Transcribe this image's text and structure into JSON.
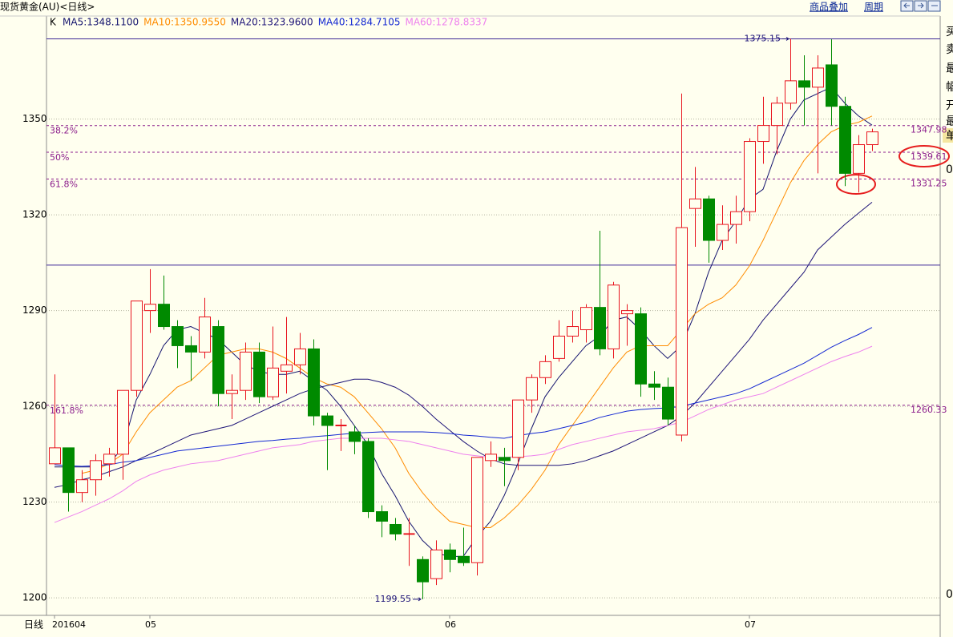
{
  "chart_data": {
    "type": "candlestick",
    "title": "现货黄金(AU)<日线>",
    "toolbar": {
      "overlay": "商品叠加",
      "period": "周期"
    },
    "indicator": "K",
    "x_axis_label": "日线",
    "right_panel": [
      "买",
      "卖",
      "最",
      "幅",
      "开",
      "最",
      "单",
      "0",
      "0"
    ],
    "categories": [
      "201604",
      null,
      null,
      null,
      null,
      null,
      null,
      "05",
      null,
      null,
      null,
      null,
      null,
      null,
      null,
      null,
      null,
      null,
      null,
      null,
      null,
      null,
      null,
      null,
      null,
      null,
      null,
      null,
      null,
      "06",
      null,
      null,
      null,
      null,
      null,
      null,
      null,
      null,
      null,
      null,
      null,
      null,
      null,
      null,
      null,
      null,
      null,
      null,
      null,
      null,
      null,
      "07",
      null,
      null,
      null,
      null,
      null,
      null,
      null,
      null,
      null
    ],
    "open": [
      1242,
      1247,
      1233,
      1237,
      1242,
      1245,
      1265,
      1290,
      1292,
      1285,
      1279,
      1277,
      1285,
      1264,
      1265,
      1277,
      1263,
      1271,
      1273,
      1278,
      1257,
      1254,
      1252,
      1249,
      1227,
      1223,
      1220,
      1212,
      1206,
      1215,
      1213,
      1211,
      1243,
      1244,
      1244,
      1262,
      1269,
      1275,
      1282,
      1284,
      1291,
      1278,
      1289,
      1289,
      1267,
      1266,
      1251,
      1322,
      1325,
      1312,
      1317,
      1321,
      1343,
      1348,
      1355,
      1362,
      1360,
      1367,
      1354,
      1333,
      1342
    ],
    "high": [
      1270,
      1247,
      1240,
      1245,
      1247,
      1265,
      1293,
      1303,
      1301,
      1287,
      1282,
      1294,
      1287,
      1270,
      1280,
      1280,
      1285,
      1288,
      1283,
      1281,
      1258,
      1256,
      1254,
      1250,
      1229,
      1225,
      1225,
      1213,
      1218,
      1217,
      1222,
      1244,
      1249,
      1247,
      1262,
      1270,
      1276,
      1287,
      1290,
      1292,
      1315,
      1299,
      1292,
      1291,
      1271,
      1269,
      1358,
      1335,
      1326,
      1323,
      1326,
      1344,
      1357,
      1357,
      1375.15,
      1370,
      1370,
      1375,
      1357,
      1345,
      1347
    ],
    "low": [
      1242,
      1227,
      1230,
      1232,
      1238,
      1237,
      1263,
      1283,
      1284,
      1272,
      1268,
      1275,
      1260,
      1256,
      1262,
      1261,
      1262,
      1264,
      1270,
      1254,
      1240,
      1246,
      1245,
      1225,
      1219,
      1218,
      1210,
      1199.55,
      1204,
      1208,
      1210,
      1207,
      1241,
      1235,
      1240,
      1258,
      1267,
      1274,
      1280,
      1280,
      1276,
      1275,
      1279,
      1263,
      1262,
      1254,
      1249,
      1310,
      1305,
      1309,
      1311,
      1318,
      1336,
      1339,
      1353,
      1348,
      1333,
      1348,
      1329,
      1327,
      1340
    ],
    "close": [
      1247,
      1233,
      1237,
      1243,
      1245,
      1265,
      1293,
      1292,
      1285,
      1279,
      1277,
      1288,
      1264,
      1265,
      1277,
      1263,
      1272,
      1273,
      1278,
      1257,
      1254,
      1254,
      1249,
      1227,
      1224,
      1220,
      1220,
      1205,
      1215,
      1212,
      1211,
      1244,
      1245,
      1243,
      1262,
      1269,
      1274,
      1282,
      1285,
      1291,
      1278,
      1298,
      1290,
      1267,
      1266,
      1256,
      1316,
      1325,
      1312,
      1317,
      1321,
      1343,
      1348,
      1355,
      1362,
      1360,
      1366,
      1354,
      1333,
      1342,
      1346
    ],
    "up_color": "#e8141e",
    "down_color": "#008a00",
    "series": [
      {
        "name": "MA5:1348.1100",
        "color": "#14146e",
        "values": [
          1241,
          1241,
          1241,
          1241,
          1242,
          1247,
          1262,
          1270,
          1279,
          1284,
          1285,
          1283,
          1281,
          1277,
          1273,
          1271,
          1270,
          1270,
          1271,
          1268,
          1265,
          1260,
          1254,
          1248,
          1239,
          1232,
          1224,
          1218,
          1214,
          1213,
          1213,
          1219,
          1224,
          1232,
          1242,
          1253,
          1263,
          1269,
          1274,
          1279,
          1282,
          1287,
          1288,
          1284,
          1279,
          1275,
          1279,
          1289,
          1302,
          1312,
          1318,
          1325,
          1328,
          1340,
          1350,
          1356,
          1358,
          1360,
          1355,
          1351,
          1348.11
        ]
      },
      {
        "name": "MA10:1350.9550",
        "color": "#ff8c00",
        "values": [
          null,
          null,
          1239,
          1240,
          1242,
          1245,
          1252,
          1258,
          1262,
          1266,
          1268,
          1272,
          1276,
          1277,
          1278,
          1278,
          1277,
          1275,
          1272,
          1269,
          1267,
          1266,
          1263,
          1258,
          1253,
          1247,
          1239,
          1233,
          1228,
          1224,
          1223,
          1222,
          1222,
          1225,
          1229,
          1234,
          1240,
          1248,
          1254,
          1260,
          1266,
          1272,
          1277,
          1279,
          1279,
          1279,
          1284,
          1289,
          1292,
          1294,
          1298,
          1304,
          1312,
          1321,
          1330,
          1337,
          1342,
          1346,
          1348,
          1349,
          1350.96
        ]
      },
      {
        "name": "MA20:1323.9600",
        "color": "#1e1478",
        "values": [
          1234.6,
          1235.5,
          1237,
          1238,
          1239.5,
          1241,
          1243,
          1245,
          1247,
          1249,
          1251,
          1252,
          1253,
          1254,
          1256,
          1258,
          1260,
          1262,
          1264,
          1265.5,
          1266.5,
          1267.5,
          1268.5,
          1268.5,
          1267.5,
          1266,
          1263.5,
          1260,
          1256,
          1252.5,
          1249,
          1246,
          1243.5,
          1242,
          1241.5,
          1241.5,
          1241.5,
          1241.5,
          1242,
          1243,
          1244.5,
          1246,
          1248,
          1250,
          1252,
          1254,
          1257,
          1261,
          1266,
          1271,
          1276,
          1281,
          1287,
          1292,
          1297,
          1302,
          1309,
          1313,
          1317,
          1320.5,
          1323.96
        ]
      },
      {
        "name": "MA40:1284.7105",
        "color": "#1428d2",
        "values": [
          1241.7,
          1241.4,
          1241.2,
          1241.4,
          1241.7,
          1242.5,
          1243,
          1244,
          1245,
          1246,
          1246.5,
          1247,
          1247.5,
          1248,
          1248.5,
          1249,
          1249.3,
          1249.7,
          1250,
          1250.5,
          1250.8,
          1251.2,
          1251.6,
          1251.8,
          1252,
          1252,
          1252,
          1252,
          1251.8,
          1251.5,
          1251,
          1250.7,
          1250.3,
          1250,
          1250.8,
          1251.5,
          1252,
          1253,
          1254,
          1255,
          1256.5,
          1257.5,
          1258.5,
          1259,
          1259.3,
          1259.5,
          1260,
          1261,
          1262,
          1263,
          1264,
          1265.5,
          1267.5,
          1269.5,
          1271.5,
          1273.5,
          1276,
          1278.5,
          1280.6,
          1282.5,
          1284.71
        ]
      },
      {
        "name": "MA60:1278.8337",
        "color": "#ee82ee",
        "values": [
          1223.6,
          1225.3,
          1227,
          1229,
          1231,
          1233.5,
          1236.5,
          1238.5,
          1240,
          1241,
          1242,
          1242.5,
          1243,
          1244,
          1245,
          1246,
          1247,
          1247.5,
          1248,
          1249,
          1249.5,
          1250,
          1250,
          1250,
          1250,
          1249.5,
          1249,
          1248,
          1247,
          1246,
          1245,
          1244.5,
          1244,
          1244,
          1244.2,
          1244.5,
          1245,
          1246.5,
          1248,
          1249,
          1250,
          1251,
          1252,
          1252.5,
          1253,
          1254,
          1255,
          1257,
          1259,
          1260.5,
          1262,
          1263,
          1264,
          1266,
          1268,
          1270,
          1272,
          1274,
          1275.6,
          1277,
          1278.83
        ]
      }
    ],
    "levels": [
      1375.15,
      1304.24
    ],
    "fib": [
      {
        "label": "38.2%",
        "value": 1347.98
      },
      {
        "label": "50%",
        "value": 1339.61
      },
      {
        "label": "61.8%",
        "value": 1331.25
      },
      {
        "label": "161.8%",
        "value": 1260.33
      }
    ],
    "ylim": [
      1194.5,
      1382.3
    ],
    "yticks": [
      1200,
      1230,
      1260,
      1290,
      1320,
      1350
    ],
    "grid": true
  }
}
